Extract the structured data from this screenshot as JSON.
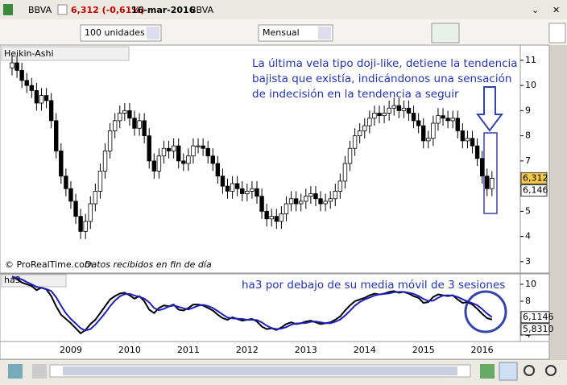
{
  "toolbar": {
    "symbol": "BBVA",
    "price": "6,312 (-0,61%)",
    "date": "16-mar-2016",
    "name": "BBVA",
    "quantity": "100 unidades",
    "period": "Mensual"
  },
  "chart_data": [
    {
      "type": "candlestick",
      "title": "Heikin-Ashi",
      "categories": [
        null,
        null,
        null,
        null,
        null,
        null,
        null,
        null,
        null,
        null,
        null,
        null,
        "2009",
        null,
        null,
        null,
        null,
        null,
        null,
        null,
        null,
        null,
        null,
        null,
        "2010",
        null,
        null,
        null,
        null,
        null,
        null,
        null,
        null,
        null,
        null,
        null,
        "2011",
        null,
        null,
        null,
        null,
        null,
        null,
        null,
        null,
        null,
        null,
        null,
        "2012",
        null,
        null,
        null,
        null,
        null,
        null,
        null,
        null,
        null,
        null,
        null,
        "2013",
        null,
        null,
        null,
        null,
        null,
        null,
        null,
        null,
        null,
        null,
        null,
        "2014",
        null,
        null,
        null,
        null,
        null,
        null,
        null,
        null,
        null,
        null,
        null,
        "2015",
        null,
        null,
        null,
        null,
        null,
        null,
        null,
        null,
        null,
        null,
        null,
        "2016",
        null,
        null
      ],
      "open": [
        10.7,
        10.9,
        10.6,
        10.2,
        10.0,
        9.8,
        9.3,
        9.6,
        9.4,
        8.6,
        7.4,
        6.4,
        5.9,
        5.4,
        4.8,
        4.2,
        4.6,
        5.3,
        5.8,
        6.6,
        7.4,
        8.2,
        8.6,
        8.9,
        9.0,
        8.7,
        8.3,
        8.6,
        8.0,
        7.0,
        6.6,
        7.2,
        7.5,
        7.4,
        7.6,
        7.0,
        6.9,
        7.2,
        7.6,
        7.6,
        7.5,
        7.2,
        6.9,
        6.4,
        6.0,
        5.8,
        6.1,
        5.9,
        5.7,
        5.8,
        5.9,
        5.6,
        5.0,
        4.7,
        4.8,
        4.6,
        4.9,
        5.3,
        5.5,
        5.3,
        5.4,
        5.6,
        5.7,
        5.5,
        5.3,
        5.4,
        5.5,
        5.8,
        6.2,
        6.9,
        7.5,
        8.0,
        8.2,
        8.4,
        8.7,
        8.9,
        8.8,
        8.9,
        9.1,
        9.2,
        9.0,
        9.1,
        8.9,
        8.6,
        8.4,
        7.8,
        7.9,
        8.5,
        8.8,
        8.7,
        8.6,
        8.7,
        8.2,
        7.8,
        7.9,
        7.6,
        7.1,
        6.4,
        5.9
      ],
      "high": [
        11.2,
        11.2,
        10.9,
        10.5,
        10.3,
        10.1,
        9.9,
        9.9,
        9.7,
        8.9,
        7.7,
        6.7,
        6.2,
        5.7,
        5.1,
        4.9,
        5.6,
        6.1,
        6.9,
        7.7,
        8.5,
        8.9,
        9.2,
        9.3,
        9.3,
        9.0,
        8.9,
        8.9,
        8.3,
        7.3,
        7.5,
        7.8,
        7.8,
        7.9,
        7.9,
        7.3,
        7.5,
        7.9,
        7.9,
        7.9,
        7.8,
        7.5,
        7.2,
        6.7,
        6.3,
        6.4,
        6.4,
        6.2,
        6.1,
        6.2,
        6.2,
        5.9,
        5.3,
        5.1,
        5.1,
        5.2,
        5.6,
        5.8,
        5.8,
        5.7,
        5.9,
        6.0,
        6.0,
        5.8,
        5.7,
        5.8,
        6.1,
        6.5,
        7.2,
        7.8,
        8.3,
        8.5,
        8.7,
        9.0,
        9.2,
        9.2,
        9.2,
        9.4,
        9.5,
        9.5,
        9.4,
        9.4,
        9.2,
        8.9,
        8.7,
        8.2,
        8.8,
        9.1,
        9.1,
        9.0,
        9.0,
        9.0,
        8.5,
        8.2,
        8.2,
        7.9,
        7.4,
        6.7,
        6.6
      ],
      "low": [
        10.4,
        10.3,
        9.9,
        9.7,
        9.5,
        9.0,
        9.0,
        9.1,
        8.3,
        7.1,
        6.1,
        5.6,
        5.1,
        4.5,
        3.9,
        3.9,
        4.3,
        5.0,
        5.5,
        6.3,
        7.1,
        7.9,
        8.3,
        8.6,
        8.4,
        8.0,
        8.0,
        7.7,
        6.7,
        6.3,
        6.3,
        6.9,
        7.1,
        7.1,
        6.7,
        6.6,
        6.6,
        6.9,
        7.3,
        7.2,
        6.9,
        6.6,
        6.1,
        5.7,
        5.5,
        5.5,
        5.6,
        5.4,
        5.4,
        5.5,
        5.3,
        4.7,
        4.4,
        4.4,
        4.3,
        4.3,
        4.6,
        5.0,
        5.0,
        5.0,
        5.1,
        5.3,
        5.2,
        5.0,
        5.0,
        5.1,
        5.2,
        5.5,
        5.9,
        6.6,
        7.2,
        7.7,
        7.9,
        8.1,
        8.4,
        8.5,
        8.5,
        8.6,
        8.8,
        8.7,
        8.7,
        8.6,
        8.3,
        8.1,
        7.5,
        7.5,
        7.6,
        8.2,
        8.4,
        8.3,
        8.3,
        7.9,
        7.5,
        7.5,
        7.3,
        6.8,
        6.1,
        5.6,
        5.6
      ],
      "close": [
        10.9,
        10.6,
        10.2,
        10.0,
        9.8,
        9.3,
        9.6,
        9.4,
        8.6,
        7.4,
        6.4,
        5.9,
        5.4,
        4.8,
        4.2,
        4.6,
        5.3,
        5.8,
        6.6,
        7.4,
        8.2,
        8.6,
        8.9,
        9.0,
        8.7,
        8.3,
        8.6,
        8.0,
        7.0,
        6.6,
        7.2,
        7.5,
        7.4,
        7.6,
        7.0,
        6.9,
        7.2,
        7.6,
        7.6,
        7.5,
        7.2,
        6.9,
        6.4,
        6.0,
        5.8,
        6.1,
        5.9,
        5.7,
        5.8,
        5.9,
        5.6,
        5.0,
        4.7,
        4.8,
        4.6,
        4.9,
        5.3,
        5.5,
        5.3,
        5.4,
        5.6,
        5.7,
        5.5,
        5.3,
        5.4,
        5.5,
        5.8,
        6.2,
        6.9,
        7.5,
        8.0,
        8.2,
        8.4,
        8.7,
        8.9,
        8.8,
        8.9,
        9.1,
        9.2,
        9.0,
        9.1,
        8.9,
        8.6,
        8.4,
        7.8,
        7.9,
        8.5,
        8.8,
        8.7,
        8.6,
        8.7,
        8.2,
        7.8,
        7.9,
        7.6,
        7.1,
        6.4,
        5.9,
        6.312
      ],
      "up_color": "#ffffff",
      "down_color": "#000000",
      "ylim": [
        2.58,
        11.54
      ],
      "yticks": [
        3,
        4,
        5,
        6,
        7,
        8,
        9,
        10,
        11
      ],
      "last_labels": [
        {
          "value": 6.312,
          "label": "6,312"
        },
        {
          "value": 6.146,
          "label": "6,146"
        }
      ],
      "annotation": [
        "La última vela tipo doji-like, detiene la tendencia",
        "bajista que existía, indicándonos una sensación",
        "de indecisión en la tendencia a seguir"
      ],
      "source": "© ProRealTime.com",
      "source_note": "Datos recibidos en fin de día"
    },
    {
      "type": "line",
      "series": [
        {
          "name": "ha3",
          "color": "#000000",
          "values": [
            10.9,
            10.6,
            10.2,
            10.0,
            9.8,
            9.3,
            9.6,
            9.4,
            8.6,
            7.4,
            6.4,
            5.9,
            5.4,
            4.8,
            4.2,
            4.6,
            5.3,
            5.8,
            6.6,
            7.4,
            8.2,
            8.6,
            8.9,
            9.0,
            8.7,
            8.3,
            8.6,
            8.0,
            7.0,
            6.6,
            7.2,
            7.5,
            7.4,
            7.6,
            7.0,
            6.9,
            7.2,
            7.6,
            7.6,
            7.5,
            7.2,
            6.9,
            6.4,
            6.0,
            5.8,
            6.1,
            5.9,
            5.7,
            5.8,
            5.9,
            5.6,
            5.0,
            4.7,
            4.8,
            4.6,
            4.9,
            5.3,
            5.5,
            5.3,
            5.4,
            5.6,
            5.7,
            5.5,
            5.3,
            5.4,
            5.5,
            5.8,
            6.2,
            6.9,
            7.5,
            8.0,
            8.2,
            8.4,
            8.7,
            8.9,
            8.8,
            8.9,
            9.1,
            9.2,
            9.0,
            9.1,
            8.9,
            8.6,
            8.4,
            7.8,
            7.9,
            8.5,
            8.8,
            8.7,
            8.6,
            8.7,
            8.2,
            7.8,
            7.9,
            7.6,
            7.1,
            6.51,
            6.0,
            5.831
          ]
        },
        {
          "color": "#1f1fbf",
          "values": [
            10.9,
            10.75,
            10.57,
            10.27,
            10.0,
            9.7,
            9.57,
            9.43,
            9.2,
            8.47,
            7.47,
            6.57,
            5.9,
            5.37,
            4.8,
            4.53,
            4.7,
            5.23,
            5.9,
            6.6,
            7.4,
            8.07,
            8.57,
            8.83,
            8.87,
            8.67,
            8.53,
            8.3,
            7.87,
            7.2,
            6.93,
            7.1,
            7.37,
            7.5,
            7.33,
            7.17,
            7.03,
            7.23,
            7.47,
            7.57,
            7.43,
            7.2,
            6.83,
            6.43,
            6.07,
            5.97,
            5.93,
            5.9,
            5.8,
            5.8,
            5.77,
            5.5,
            5.1,
            4.83,
            4.7,
            4.77,
            4.93,
            5.23,
            5.37,
            5.4,
            5.43,
            5.57,
            5.6,
            5.5,
            5.4,
            5.4,
            5.57,
            5.83,
            6.3,
            6.87,
            7.47,
            7.9,
            8.2,
            8.43,
            8.67,
            8.8,
            8.87,
            8.93,
            9.07,
            9.1,
            9.1,
            9.0,
            8.87,
            8.63,
            8.27,
            8.03,
            8.07,
            8.4,
            8.67,
            8.7,
            8.67,
            8.5,
            8.23,
            7.97,
            7.77,
            7.53,
            7.07,
            6.54,
            6.1146
          ]
        }
      ],
      "ylim": [
        3.33,
        11.14
      ],
      "yticks": [
        4,
        6,
        8,
        10
      ],
      "last_labels": [
        {
          "value": 6.1146,
          "label": "6,1146"
        },
        {
          "value": 5.831,
          "label": "5,8310"
        }
      ],
      "annotation": "ha3 por debajo de su media móvil de 3 sesiones"
    }
  ]
}
